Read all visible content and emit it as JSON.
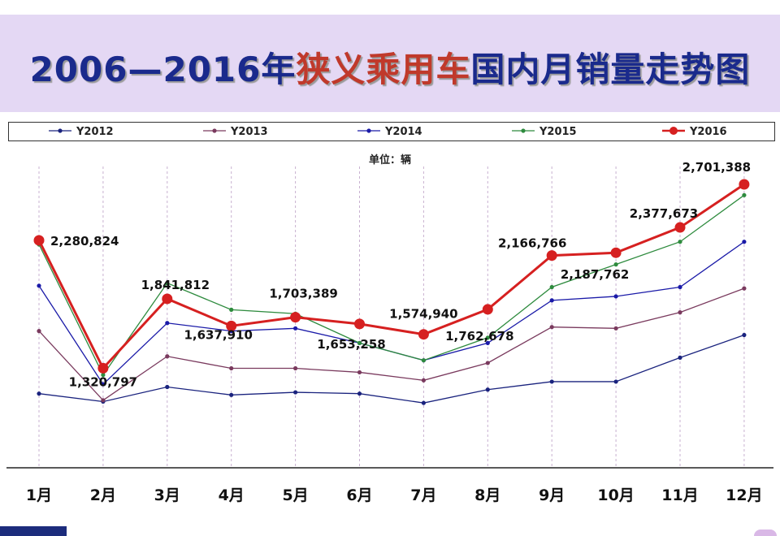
{
  "title": {
    "part1": "2006—2016年",
    "part2": "狭义乘用车",
    "part3": "国内月销量走势图"
  },
  "unit_label": "单位：辆",
  "colors": {
    "title_blue": "#1a2a8c",
    "title_red": "#c0392b",
    "band": "#e4d8f4"
  },
  "chart_data": {
    "type": "line",
    "categories": [
      "1月",
      "2月",
      "3月",
      "4月",
      "5月",
      "6月",
      "7月",
      "8月",
      "9月",
      "10月",
      "11月",
      "12月"
    ],
    "ylim": [
      0,
      3000000
    ],
    "grid": "vertical dashed lines at each month",
    "legend_placement": "top, horizontal, boxed",
    "series": [
      {
        "name": "Y2012",
        "color": "#1a237e",
        "values": [
          1130000,
          1070000,
          1180000,
          1120000,
          1140000,
          1130000,
          1060000,
          1160000,
          1220000,
          1220000,
          1400000,
          1570000
        ]
      },
      {
        "name": "Y2013",
        "color": "#7a3a5e",
        "values": [
          1600000,
          1080000,
          1410000,
          1320000,
          1320000,
          1290000,
          1230000,
          1360000,
          1630000,
          1620000,
          1740000,
          1920000
        ]
      },
      {
        "name": "Y2014",
        "color": "#1a1aa8",
        "values": [
          1940000,
          1200000,
          1660000,
          1600000,
          1620000,
          1510000,
          1380000,
          1510000,
          1830000,
          1860000,
          1930000,
          2270000
        ]
      },
      {
        "name": "Y2015",
        "color": "#2e8b3e",
        "values": [
          2250000,
          1270000,
          1960000,
          1760000,
          1730000,
          1510000,
          1380000,
          1550000,
          1930000,
          2100000,
          2270000,
          2620000
        ]
      },
      {
        "name": "Y2016",
        "color": "#d62020",
        "values": [
          2280824,
          1320797,
          1841812,
          1637910,
          1703389,
          1653258,
          1574940,
          1762678,
          2166766,
          2187762,
          2377673,
          2701388
        ],
        "labels": [
          "2,280,824",
          "1,320,797",
          "1,841,812",
          "1,637,910",
          "1,703,389",
          "1,653,258",
          "1,574,940",
          "1,762,678",
          "2,166,766",
          "2,187,762",
          "2,377,673",
          "2,701,388"
        ]
      }
    ]
  }
}
